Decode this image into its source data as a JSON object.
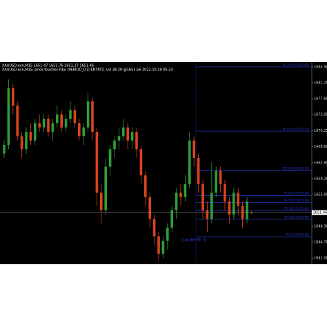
{
  "chart_data": {
    "type": "candlestick",
    "title": "XAUUSD.ecn,M15  1651.47 1651.76 1651.17 1651.46",
    "subtitle": "XAUUSD.ecn,M15: price touches Fibo (PERIOD_D1) ENTRY2- Lvl 38.20 @1651.56  2022.10.19 05:33",
    "annotation": "Candle Nr 1",
    "up_color": "#2e9e3a",
    "down_color": "#d9441c",
    "level_color": "#2a3fd6",
    "open": [
      1665,
      1667,
      1680,
      1676,
      1669,
      1666,
      1670,
      1668,
      1672,
      1671,
      1673,
      1670,
      1672,
      1674,
      1671,
      1673,
      1675,
      1672,
      1669,
      1671,
      1677,
      1670,
      1656,
      1652,
      1662,
      1666,
      1668,
      1669,
      1671,
      1668,
      1670,
      1666,
      1660,
      1655,
      1650,
      1646,
      1642,
      1645,
      1648,
      1652,
      1656,
      1655,
      1658,
      1668,
      1664,
      1658,
      1652,
      1650,
      1656,
      1661,
      1658,
      1654,
      1651,
      1656,
      1653,
      1650,
      1651.47
    ],
    "high": [
      1668,
      1682,
      1681,
      1677,
      1670,
      1671,
      1672,
      1673,
      1674,
      1674,
      1674,
      1673,
      1676,
      1675,
      1674,
      1677,
      1676,
      1673,
      1672,
      1679,
      1678,
      1671,
      1658,
      1664,
      1667,
      1669,
      1671,
      1673,
      1672,
      1671,
      1671,
      1667,
      1661,
      1656,
      1651,
      1647,
      1646,
      1649,
      1653,
      1657,
      1658,
      1660,
      1670,
      1669,
      1665,
      1659,
      1654,
      1663,
      1662,
      1662,
      1659,
      1655,
      1657,
      1657,
      1654,
      1655,
      1651.76
    ],
    "low": [
      1664,
      1666,
      1674,
      1668,
      1664,
      1665,
      1667,
      1667,
      1670,
      1670,
      1669,
      1668,
      1671,
      1670,
      1670,
      1672,
      1671,
      1668,
      1667,
      1670,
      1668,
      1653,
      1649,
      1651,
      1660,
      1664,
      1666,
      1668,
      1666,
      1666,
      1664,
      1658,
      1653,
      1648,
      1644,
      1640.5,
      1641,
      1643,
      1647,
      1650,
      1653,
      1654,
      1657,
      1662,
      1656,
      1650,
      1647,
      1649,
      1655,
      1656,
      1652,
      1649,
      1650,
      1651,
      1648,
      1649,
      1651.17
    ],
    "close": [
      1667,
      1680,
      1676,
      1669,
      1666,
      1670,
      1668,
      1672,
      1671,
      1673,
      1670,
      1672,
      1674,
      1671,
      1673,
      1675,
      1672,
      1669,
      1671,
      1677,
      1670,
      1656,
      1652,
      1662,
      1666,
      1668,
      1669,
      1671,
      1668,
      1670,
      1666,
      1660,
      1655,
      1650,
      1646,
      1642,
      1645,
      1648,
      1652,
      1656,
      1655,
      1658,
      1668,
      1664,
      1658,
      1652,
      1650,
      1656,
      1661,
      1658,
      1654,
      1651,
      1656,
      1653,
      1650,
      1654,
      1651.46
    ],
    "ylim": [
      1639.6,
      1686.0
    ],
    "yticks": [
      {
        "value": 1684.9,
        "label": "1684.90"
      },
      {
        "value": 1681.25,
        "label": "1681.25"
      },
      {
        "value": 1677.6,
        "label": "1677.60"
      },
      {
        "value": 1673.95,
        "label": "1673.95"
      },
      {
        "value": 1670.25,
        "label": "1670.25"
      },
      {
        "value": 1666.6,
        "label": "1666.60"
      },
      {
        "value": 1662.9,
        "label": "1662.90"
      },
      {
        "value": 1659.25,
        "label": "1659.25"
      },
      {
        "value": 1655.6,
        "label": "1655.60"
      },
      {
        "value": 1648.3,
        "label": "1648.30"
      },
      {
        "value": 1644.7,
        "label": "1644.70"
      },
      {
        "value": 1641.0,
        "label": "1641.00"
      }
    ],
    "levels": [
      {
        "label": "FE 261.8 (1684.90)",
        "value": 1684.9
      },
      {
        "label": "FE 161.8 (1670.15)",
        "value": 1670.15
      },
      {
        "label": "FE 100.0 (1661.10)",
        "value": 1661.1
      },
      {
        "label": "FE 61.8 (1655.40)",
        "value": 1655.4
      },
      {
        "label": "FE 50.0 (1653.80)",
        "value": 1653.8
      },
      {
        "label": "FE 38.2 (1651.90)",
        "value": 1651.9
      },
      {
        "label": "FE 23.6 (1649.90)",
        "value": 1649.9
      },
      {
        "label": "FE 0.0 (1645.90)",
        "value": 1645.9
      }
    ]
  }
}
